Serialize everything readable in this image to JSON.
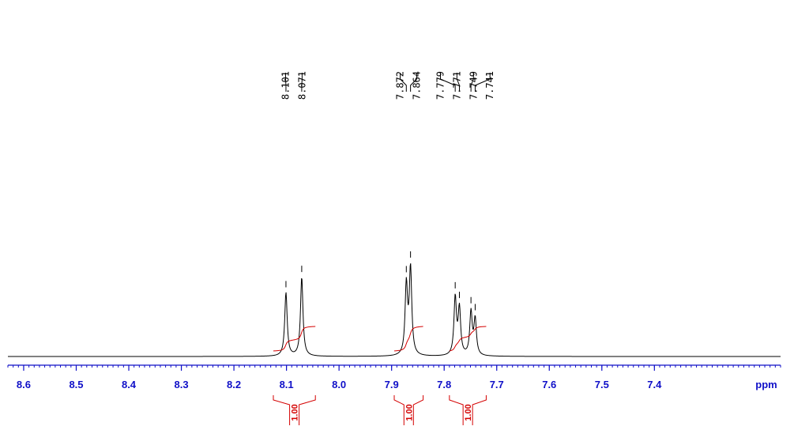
{
  "chart_data": {
    "type": "line",
    "title": "",
    "xlabel": "ppm",
    "ylabel": "",
    "xlim": [
      8.63,
      7.16
    ],
    "x_reversed": true,
    "x_ticks": [
      8.6,
      8.5,
      8.4,
      8.3,
      8.2,
      8.1,
      8.0,
      7.9,
      7.8,
      7.7,
      7.6,
      7.5,
      7.4
    ],
    "x_tick_labels": [
      "8.6",
      "8.5",
      "8.4",
      "8.3",
      "8.2",
      "8.1",
      "8.0",
      "7.9",
      "7.8",
      "7.7",
      "7.6",
      "7.5",
      "7.4"
    ],
    "peaks": [
      {
        "ppm": 8.101,
        "label": "8.101",
        "height": 0.62
      },
      {
        "ppm": 8.071,
        "label": "8.071",
        "height": 0.77
      },
      {
        "ppm": 7.872,
        "label": "7.872",
        "height": 0.68
      },
      {
        "ppm": 7.864,
        "label": "7.864",
        "height": 0.84
      },
      {
        "ppm": 7.779,
        "label": "7.779",
        "height": 0.56
      },
      {
        "ppm": 7.771,
        "label": "7.771",
        "height": 0.45
      },
      {
        "ppm": 7.749,
        "label": "7.749",
        "height": 0.42
      },
      {
        "ppm": 7.741,
        "label": "7.741",
        "height": 0.35
      }
    ],
    "integrals": [
      {
        "from": 8.125,
        "to": 8.045,
        "value": "1.00"
      },
      {
        "from": 7.895,
        "to": 7.84,
        "value": "1.00"
      },
      {
        "from": 7.79,
        "to": 7.72,
        "value": "1.00"
      }
    ],
    "colors": {
      "spectrum": "#000000",
      "axis": "#1010c8",
      "integral": "#d40000",
      "peak_label": "#000000"
    }
  }
}
